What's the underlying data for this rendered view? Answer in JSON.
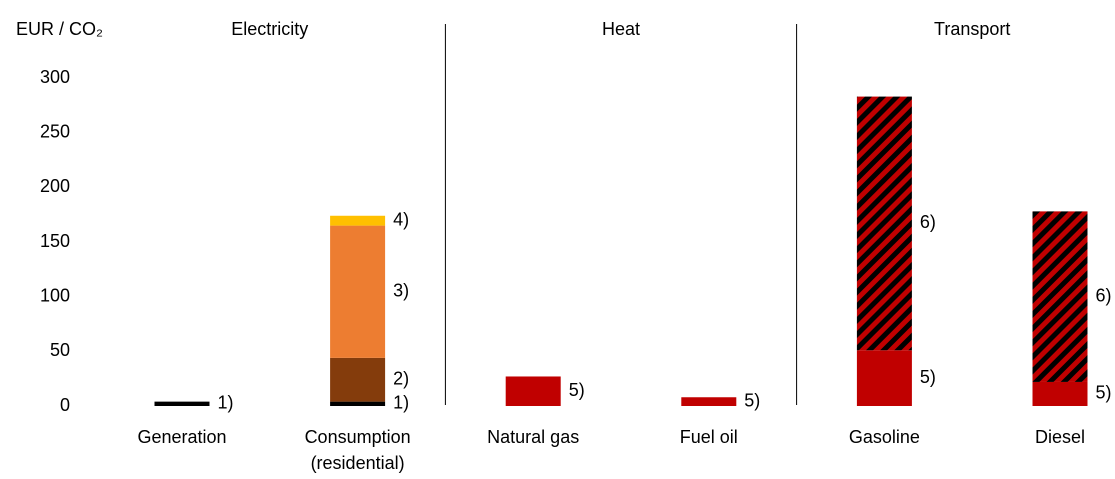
{
  "chart_data": {
    "type": "bar",
    "stacked": true,
    "y_label": "EUR / CO₂",
    "groups": [
      "Electricity",
      "Heat",
      "Transport"
    ],
    "categories": [
      "Generation",
      "Consumption\n(residential)",
      "Natural gas",
      "Fuel oil",
      "Gasoline",
      "Diesel"
    ],
    "series": [
      {
        "name": "1)",
        "color": "#000000",
        "values": [
          4,
          4,
          null,
          null,
          null,
          null
        ]
      },
      {
        "name": "2)",
        "color": "#843c0c",
        "values": [
          null,
          40,
          null,
          null,
          null,
          null
        ]
      },
      {
        "name": "3)",
        "color": "#ed7d31",
        "values": [
          null,
          121,
          null,
          null,
          null,
          null
        ]
      },
      {
        "name": "4)",
        "color": "#ffc000",
        "values": [
          null,
          9,
          null,
          null,
          null,
          null
        ]
      },
      {
        "name": "5)",
        "color": "#c00000",
        "values": [
          null,
          null,
          27,
          8,
          51,
          22
        ]
      },
      {
        "name": "6)",
        "color": "#c00000",
        "pattern": "hatch",
        "values": [
          null,
          null,
          null,
          null,
          232,
          156
        ]
      }
    ],
    "ylim": [
      0,
      300
    ],
    "yticks": [
      0,
      50,
      100,
      150,
      200,
      250,
      300
    ],
    "grid": false
  }
}
